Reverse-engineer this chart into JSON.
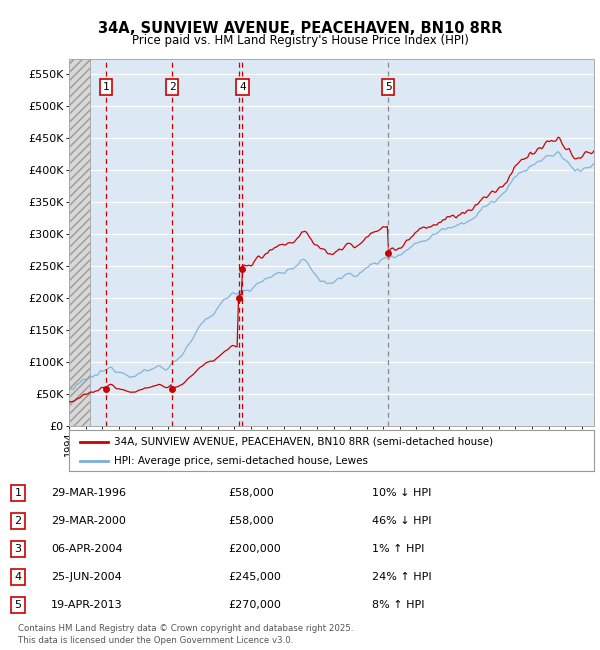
{
  "title": "34A, SUNVIEW AVENUE, PEACEHAVEN, BN10 8RR",
  "subtitle": "Price paid vs. HM Land Registry's House Price Index (HPI)",
  "ylabel_ticks": [
    "£0",
    "£50K",
    "£100K",
    "£150K",
    "£200K",
    "£250K",
    "£300K",
    "£350K",
    "£400K",
    "£450K",
    "£500K",
    "£550K"
  ],
  "ytick_vals": [
    0,
    50000,
    100000,
    150000,
    200000,
    250000,
    300000,
    350000,
    400000,
    450000,
    500000,
    550000
  ],
  "ylim": [
    0,
    575000
  ],
  "xlim_start": 1994.0,
  "xlim_end": 2025.75,
  "hatch_end_year": 1995.3,
  "bg_color": "#dce9f5",
  "grid_color": "#ffffff",
  "red_line_color": "#cc0000",
  "blue_line_color": "#7aaed6",
  "transactions": [
    {
      "num": 1,
      "year": 1996.24,
      "price": 58000,
      "label": "1",
      "date": "29-MAR-1996",
      "pct": "10%",
      "dir": "↓"
    },
    {
      "num": 2,
      "year": 2000.24,
      "price": 58000,
      "label": "2",
      "date": "29-MAR-2000",
      "pct": "46%",
      "dir": "↓"
    },
    {
      "num": 3,
      "year": 2004.27,
      "price": 200000,
      "label": "3",
      "date": "06-APR-2004",
      "pct": "1%",
      "dir": "↑"
    },
    {
      "num": 4,
      "year": 2004.49,
      "price": 245000,
      "label": "4",
      "date": "25-JUN-2004",
      "pct": "24%",
      "dir": "↑"
    },
    {
      "num": 5,
      "year": 2013.3,
      "price": 270000,
      "label": "5",
      "date": "19-APR-2013",
      "pct": "8%",
      "dir": "↑"
    }
  ],
  "shown_in_chart": [
    1,
    2,
    4,
    5
  ],
  "legend_entries": [
    "34A, SUNVIEW AVENUE, PEACEHAVEN, BN10 8RR (semi-detached house)",
    "HPI: Average price, semi-detached house, Lewes"
  ],
  "footer": "Contains HM Land Registry data © Crown copyright and database right 2025.\nThis data is licensed under the Open Government Licence v3.0.",
  "marker_box_color": "#cc0000",
  "dashed_line_color_red": "#cc0000",
  "dashed_line_color_grey": "#888888",
  "red_dashed_transactions": [
    1,
    2,
    3,
    4
  ],
  "grey_dashed_transactions": [
    5
  ]
}
